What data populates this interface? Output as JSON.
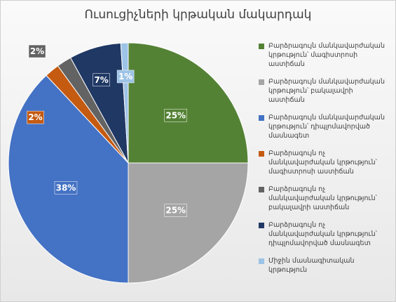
{
  "chart_data": {
    "type": "pie",
    "title": "Ուսուցիչների կրթական մակարդակ",
    "legend_position": "right",
    "start_angle_deg": 0,
    "direction": "clockwise",
    "slices": [
      {
        "label": "Բարձրագույն մանկավարժական կրթություն՝ մագիստրոսի աստիճան",
        "value": 25,
        "display": "25%",
        "color": "#548235"
      },
      {
        "label": "Բարձրագույն մանկավարժական կրթություն՝ բակալավրի աստիճան",
        "value": 25,
        "display": "25%",
        "color": "#a5a5a5"
      },
      {
        "label": "Բարձրագույն մանկավարժական կրթություն՝ դիպլոմավորված մասնագետ",
        "value": 38,
        "display": "38%",
        "color": "#4472c4"
      },
      {
        "label": "Բարձրագույն ոչ մանկավարժական կրթություն՝ մագիստրոսի աստիճան",
        "value": 2,
        "display": "2%",
        "color": "#c55a11"
      },
      {
        "label": "Բարձրագույն ոչ մանկավարժական կրթություն՝ բակալավրի աստիճան",
        "value": 2,
        "display": "2%",
        "color": "#636363"
      },
      {
        "label": "Բարձրագույն ոչ մանկավարժական կրթություն՝ դիպլոմավորված մասնագետ",
        "value": 7,
        "display": "7%",
        "color": "#203864"
      },
      {
        "label": "Միջին մասնագիտական կրթություն",
        "value": 1,
        "display": "1%",
        "color": "#9dc3e6"
      }
    ]
  }
}
